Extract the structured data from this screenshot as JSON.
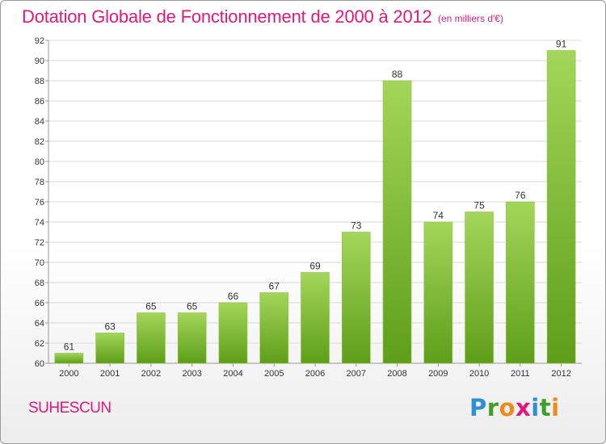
{
  "header": {
    "title": "Dotation Globale de Fonctionnement de 2000 à 2012",
    "unit": "(en milliers d'€)"
  },
  "footer": {
    "city": "SUHESCUN",
    "brand": {
      "letters": [
        "P",
        "r",
        "o",
        "x",
        "i",
        "t",
        "i"
      ],
      "colors": [
        "#2e8fd6",
        "#3e9f2a",
        "#f08a1c",
        "#e0197d",
        "#2e8fd6",
        "#3e9f2a",
        "#f08a1c"
      ]
    }
  },
  "colors": {
    "title": "#e0197d",
    "bar_light": "#a3d65a",
    "bar_dark": "#5e9e1a",
    "grid": "#d9d9d9",
    "axis_text": "#333333"
  },
  "chart_data": {
    "type": "bar",
    "title": "Dotation Globale de Fonctionnement de 2000 à 2012",
    "categories": [
      "2000",
      "2001",
      "2002",
      "2003",
      "2004",
      "2005",
      "2006",
      "2007",
      "2008",
      "2009",
      "2010",
      "2011",
      "2012"
    ],
    "values": [
      61,
      63,
      65,
      65,
      66,
      67,
      69,
      73,
      88,
      74,
      75,
      76,
      91
    ],
    "ylim": [
      60,
      92
    ],
    "yticks": [
      60,
      62,
      64,
      66,
      68,
      70,
      72,
      74,
      76,
      78,
      80,
      82,
      84,
      86,
      88,
      90,
      92
    ],
    "grid": true,
    "data_labels": true
  }
}
